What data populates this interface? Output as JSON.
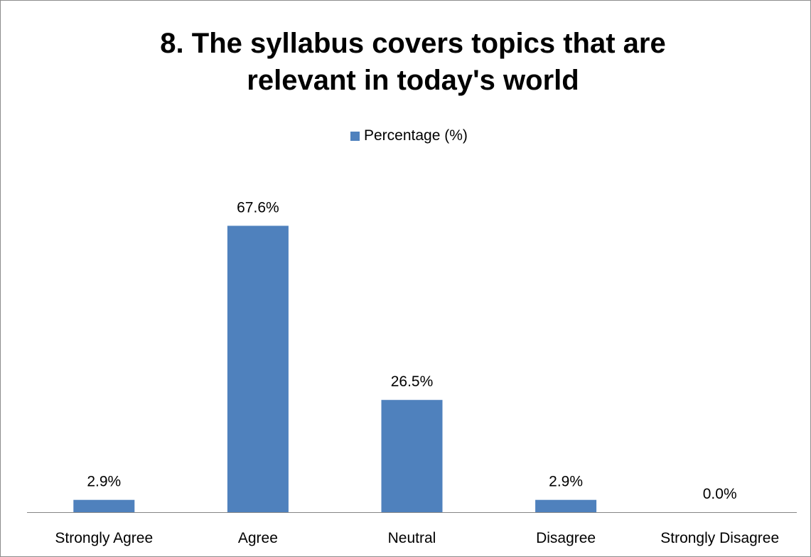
{
  "chart_data": {
    "type": "bar",
    "title_lines": [
      "8. The syllabus covers topics that are",
      "relevant in today's world"
    ],
    "categories": [
      "Strongly Agree",
      "Agree",
      "Neutral",
      "Disagree",
      "Strongly Disagree"
    ],
    "series": [
      {
        "name": "Percentage (%)",
        "values": [
          2.9,
          67.6,
          26.5,
          2.9,
          0.0
        ],
        "labels": [
          "2.9%",
          "67.6%",
          "26.5%",
          "2.9%",
          "0.0%"
        ],
        "color": "#4f81bd"
      }
    ],
    "ylim": [
      0,
      70
    ],
    "grid": false,
    "legend_position": "top",
    "axis_color": "#868686"
  }
}
